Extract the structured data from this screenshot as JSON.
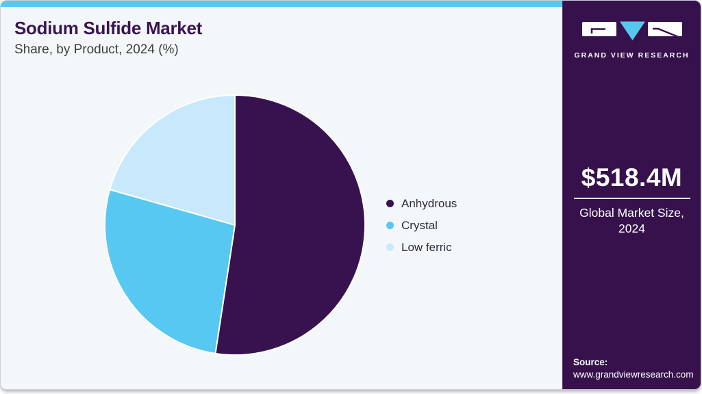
{
  "header": {
    "title": "Sodium Sulfide Market",
    "subtitle": "Share, by Product, 2024 (%)"
  },
  "chart_data": {
    "type": "pie",
    "title": "Sodium Sulfide Market Share, by Product, 2024 (%)",
    "categories": [
      "Anhydrous",
      "Crystal",
      "Low ferric"
    ],
    "values": [
      52.4,
      27.0,
      20.6
    ],
    "unit": "percent share",
    "colors": [
      "#37124E",
      "#56C8F2",
      "#C7E9FB"
    ],
    "start_angle_deg": 0,
    "direction": "clockwise",
    "legend_position": "right",
    "labels_on_slices": false
  },
  "sidebar": {
    "brand_name": "GRAND VIEW RESEARCH",
    "market_size_value": "$518.4M",
    "market_size_label": "Global Market Size, 2024",
    "source_label": "Source:",
    "source_url": "www.grandviewresearch.com"
  },
  "colors": {
    "accent_bar": "#56C8F0",
    "card_bg": "#F3F7FA",
    "sidebar_bg": "#36114C",
    "title_text": "#3A1453",
    "subtitle_text": "#3E3E3E",
    "legend_text": "#2D2D3A",
    "logo_triangle": "#56C8F0"
  }
}
